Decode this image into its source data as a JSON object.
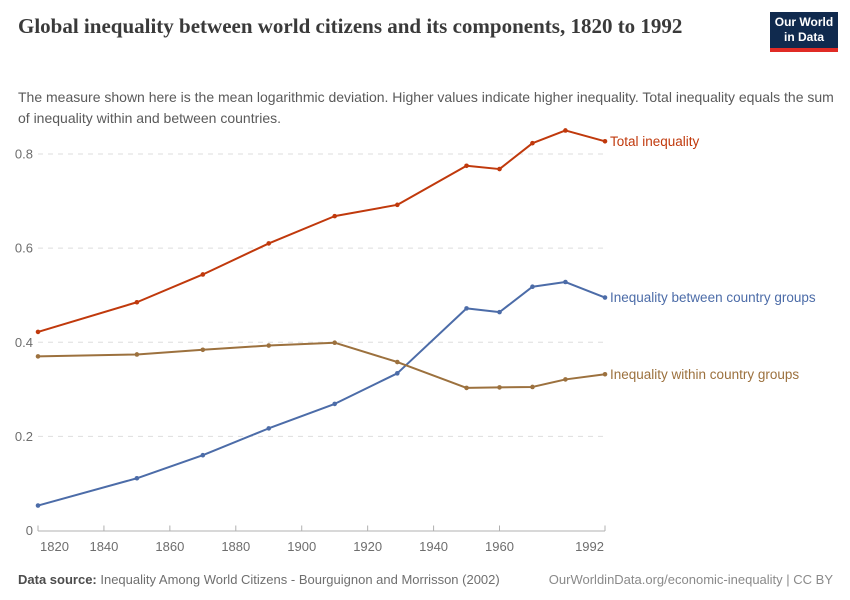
{
  "header": {
    "title": "Global inequality between world citizens and its components, 1820 to 1992",
    "subtitle": "The measure shown here is the mean logarithmic deviation. Higher values indicate higher inequality. Total inequality equals the sum of inequality within and between countries.",
    "logo": {
      "line1": "Our World",
      "line2": "in Data"
    }
  },
  "chart_data": {
    "type": "line",
    "x": [
      1820,
      1850,
      1870,
      1890,
      1910,
      1929,
      1950,
      1960,
      1970,
      1980,
      1992
    ],
    "series": [
      {
        "name": "Total inequality",
        "color": "#c0390c",
        "values": [
          0.422,
          0.485,
          0.544,
          0.61,
          0.668,
          0.692,
          0.775,
          0.768,
          0.823,
          0.85,
          0.827
        ]
      },
      {
        "name": "Inequality between country groups",
        "color": "#4c6ca8",
        "values": [
          0.053,
          0.111,
          0.16,
          0.217,
          0.269,
          0.334,
          0.472,
          0.464,
          0.518,
          0.528,
          0.495
        ]
      },
      {
        "name": "Inequality within country groups",
        "color": "#9c713e",
        "values": [
          0.37,
          0.374,
          0.384,
          0.393,
          0.399,
          0.358,
          0.303,
          0.304,
          0.305,
          0.321,
          0.332
        ]
      }
    ],
    "xticks": [
      1820,
      1840,
      1860,
      1880,
      1900,
      1920,
      1940,
      1960,
      1992
    ],
    "yticks": [
      0,
      0.2,
      0.4,
      0.6,
      0.8
    ],
    "xlim": [
      1820,
      1992
    ],
    "ylim": [
      0,
      0.9
    ],
    "grid": "horizontal-dashed",
    "legend_position": "right-of-line-ends",
    "title": "Global inequality between world citizens and its components, 1820 to 1992",
    "xlabel": "",
    "ylabel": "mean logarithmic deviation"
  },
  "footer": {
    "source_label": "Data source:",
    "source_text": " Inequality Among World Citizens - Bourguignon and Morrisson (2002)",
    "link_text": "OurWorldinData.org/economic-inequality | CC BY"
  },
  "colors": {
    "logo_bg": "#102a4e",
    "logo_stripe": "#e02b25",
    "grid": "#dedede",
    "axis": "#b0b0b0",
    "tick_text": "#6e6e6e"
  }
}
